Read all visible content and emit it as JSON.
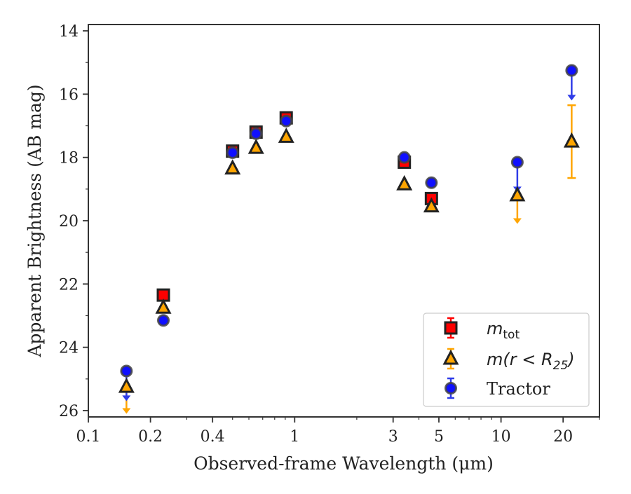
{
  "chart_data": {
    "type": "scatter",
    "title": "",
    "xlabel": "Observed-frame Wavelength (μm)",
    "ylabel": "Apparent Brightness (AB mag)",
    "x_scale": "log",
    "xlim": [
      0.1,
      30
    ],
    "ylim": [
      26.2,
      13.8
    ],
    "y_inverted": true,
    "grid": false,
    "legend_placement": "bottom-right",
    "x_ticks": [
      {
        "value": 0.1,
        "label": "0.1"
      },
      {
        "value": 0.2,
        "label": "0.2"
      },
      {
        "value": 0.4,
        "label": "0.4"
      },
      {
        "value": 1,
        "label": "1"
      },
      {
        "value": 3,
        "label": "3"
      },
      {
        "value": 5,
        "label": "5"
      },
      {
        "value": 10,
        "label": "10"
      },
      {
        "value": 20,
        "label": "20"
      }
    ],
    "y_ticks": [
      {
        "value": 14,
        "label": "14"
      },
      {
        "value": 16,
        "label": "16"
      },
      {
        "value": 18,
        "label": "18"
      },
      {
        "value": 20,
        "label": "20"
      },
      {
        "value": 22,
        "label": "22"
      },
      {
        "value": 24,
        "label": "24"
      },
      {
        "value": 26,
        "label": "26"
      }
    ],
    "series": [
      {
        "name": "m_tot",
        "marker": "square",
        "color": "#ff0000",
        "edge_color": "#222222",
        "points": [
          {
            "x": 0.231,
            "y": 22.35
          },
          {
            "x": 0.5,
            "y": 17.8
          },
          {
            "x": 0.65,
            "y": 17.2
          },
          {
            "x": 0.91,
            "y": 16.75
          },
          {
            "x": 3.4,
            "y": 18.15
          },
          {
            "x": 4.6,
            "y": 19.3
          }
        ]
      },
      {
        "name": "m(r<R25)",
        "marker": "triangle",
        "color": "#ffa500",
        "edge_color": "#222222",
        "points": [
          {
            "x": 0.153,
            "y": 25.25,
            "upper_limit": true,
            "limit_to": 26.1
          },
          {
            "x": 0.231,
            "y": 22.75
          },
          {
            "x": 0.5,
            "y": 18.35
          },
          {
            "x": 0.65,
            "y": 17.7
          },
          {
            "x": 0.91,
            "y": 17.35
          },
          {
            "x": 3.4,
            "y": 18.85
          },
          {
            "x": 4.6,
            "y": 19.55
          },
          {
            "x": 12,
            "y": 19.2,
            "upper_limit": true,
            "limit_to": 20.1
          },
          {
            "x": 22,
            "y": 17.5,
            "err_low": 16.35,
            "err_high": 18.65
          }
        ]
      },
      {
        "name": "Tractor",
        "marker": "circle",
        "color": "#1010ff",
        "edge_color": "#444444",
        "points": [
          {
            "x": 0.153,
            "y": 24.75,
            "upper_limit": true,
            "limit_to": 25.7
          },
          {
            "x": 0.231,
            "y": 23.15
          },
          {
            "x": 0.5,
            "y": 17.85
          },
          {
            "x": 0.65,
            "y": 17.25
          },
          {
            "x": 0.91,
            "y": 16.85
          },
          {
            "x": 3.4,
            "y": 18.0
          },
          {
            "x": 4.6,
            "y": 18.8
          },
          {
            "x": 12,
            "y": 18.15,
            "upper_limit": true,
            "limit_to": 19.1
          },
          {
            "x": 22,
            "y": 15.25,
            "upper_limit": true,
            "limit_to": 16.2
          }
        ]
      }
    ]
  },
  "legend": {
    "entries": [
      {
        "label_main": "m",
        "label_sub": "tot",
        "label_tail": ""
      },
      {
        "label_main": "m(r < R",
        "label_sub": "25",
        "label_tail": ")"
      },
      {
        "label_main": "Tractor",
        "label_sub": "",
        "label_tail": ""
      }
    ]
  }
}
